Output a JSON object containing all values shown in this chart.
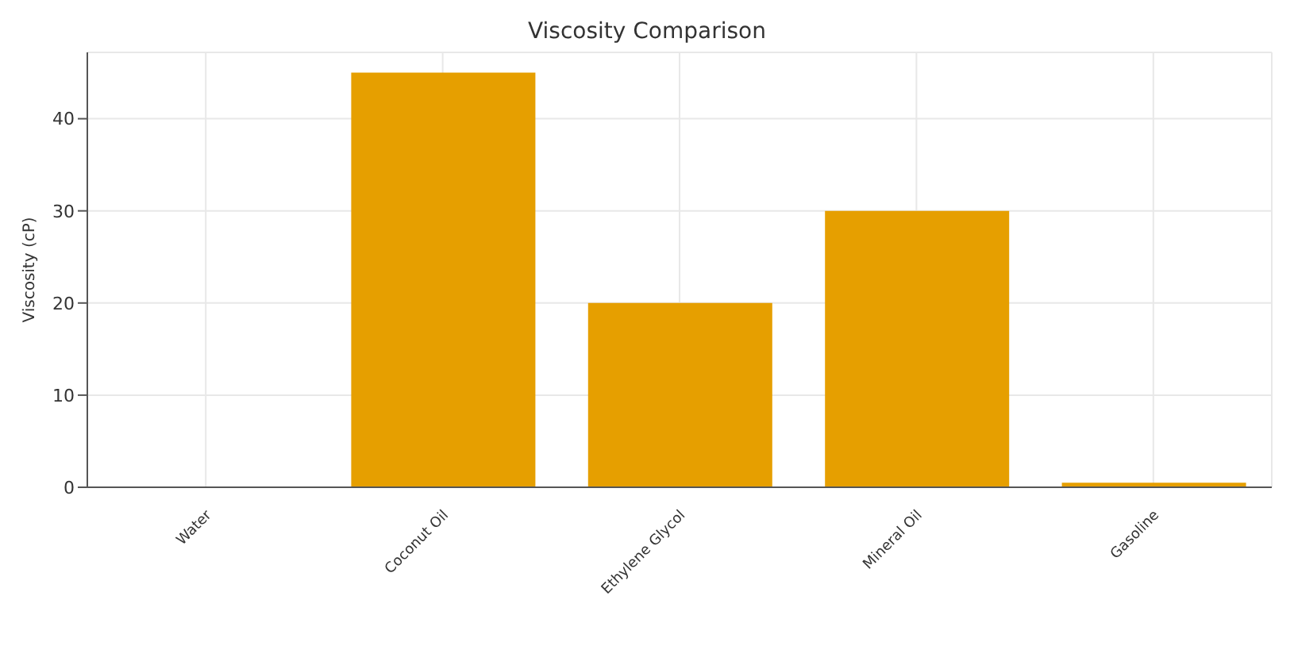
{
  "chart_data": {
    "type": "bar",
    "title": "Viscosity Comparison",
    "ylabel": "Viscosity (cP)",
    "categories": [
      "Water",
      "Coconut Oil",
      "Ethylene Glycol",
      "Mineral Oil",
      "Gasoline"
    ],
    "values": [
      0,
      45,
      20,
      30,
      0.5
    ],
    "color": "#e69f00",
    "ylim": [
      0,
      47.2
    ],
    "yticks": [
      0,
      10,
      20,
      30,
      40
    ],
    "grid": true
  }
}
